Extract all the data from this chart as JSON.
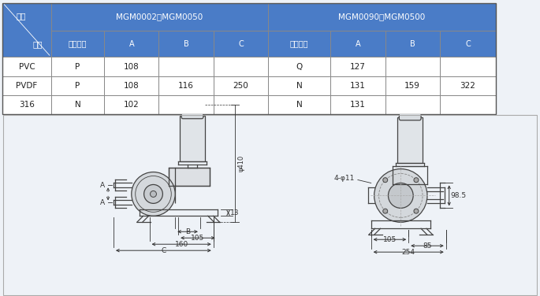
{
  "bg_color": "#eef2f7",
  "header_bg": "#4a7cc7",
  "header_text": "#ffffff",
  "cell_bg": "#ffffff",
  "cell_text": "#222222",
  "line_color": "#444444",
  "dim_color": "#333333",
  "draw_bg": "#f7f9fc",
  "group1_header": "MGM0002－MGM0050",
  "group2_header": "MGM0090－MGM0500",
  "subheaders": [
    "接口代码",
    "A",
    "B",
    "C",
    "接口代码",
    "A",
    "B",
    "C"
  ],
  "mat_label1": "泵头",
  "mat_label2": "材料",
  "rows": [
    [
      "PVC",
      "P",
      "108",
      "",
      "",
      "Q",
      "127",
      "",
      ""
    ],
    [
      "PVDF",
      "P",
      "108",
      "116",
      "250",
      "N",
      "131",
      "159",
      "322"
    ],
    [
      "316",
      "N",
      "102",
      "",
      "",
      "N",
      "131",
      "",
      ""
    ]
  ]
}
